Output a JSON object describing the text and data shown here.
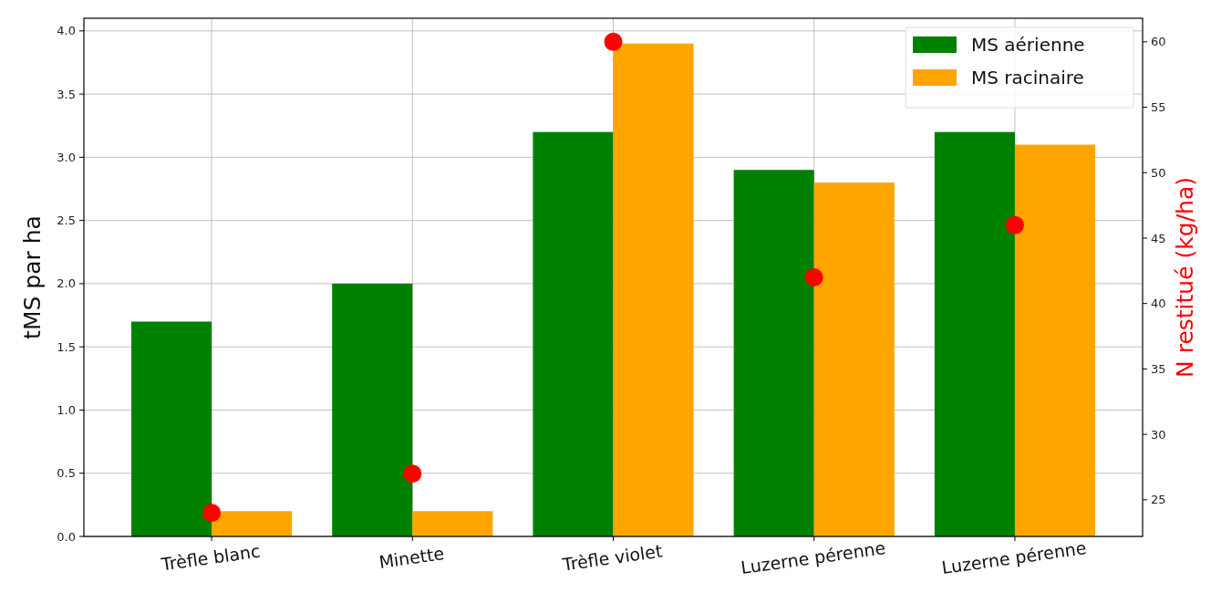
{
  "chart_data": {
    "type": "bar",
    "ylabel": "tMS par ha",
    "y2label": "N restitué (kg/ha)",
    "categories": [
      "Trèfle blanc",
      "Minette",
      "Trèfle violet",
      "Luzerne pérenne",
      "Luzerne pérenne"
    ],
    "series": [
      {
        "name": "MS aérienne",
        "color": "#008000",
        "values": [
          1.7,
          2.0,
          3.2,
          2.9,
          3.2
        ]
      },
      {
        "name": "MS racinaire",
        "color": "#ffa500",
        "values": [
          0.2,
          0.2,
          3.9,
          2.8,
          3.1
        ]
      },
      {
        "type": "scatter",
        "axis": "y2",
        "color": "#ff0000",
        "values": [
          24,
          27,
          60,
          42,
          46
        ]
      }
    ],
    "ylim": [
      0,
      4.1
    ],
    "yticks": [
      {
        "value": 0,
        "label": "0.0"
      },
      {
        "value": 0.5,
        "label": "0.5"
      },
      {
        "value": 1,
        "label": "1.0"
      },
      {
        "value": 1.5,
        "label": "1.5"
      },
      {
        "value": 2,
        "label": "2.0"
      },
      {
        "value": 2.5,
        "label": "2.5"
      },
      {
        "value": 3,
        "label": "3.0"
      },
      {
        "value": 3.5,
        "label": "3.5"
      },
      {
        "value": 4,
        "label": "4.0"
      }
    ],
    "y2lim": [
      22.2,
      61.8
    ],
    "y2ticks": [
      25,
      30,
      35,
      40,
      45,
      50,
      55,
      60
    ],
    "grid": true,
    "legend": "top right",
    "marker": "circle"
  }
}
